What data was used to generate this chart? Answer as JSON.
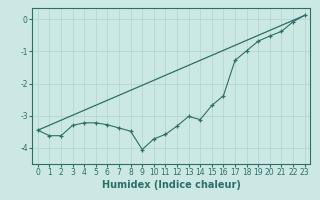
{
  "xlabel": "Humidex (Indice chaleur)",
  "ylabel": "",
  "bg_color": "#cce8e4",
  "line_color": "#2d6e68",
  "xlim": [
    -0.5,
    23.5
  ],
  "ylim": [
    -4.5,
    0.35
  ],
  "x_ticks": [
    0,
    1,
    2,
    3,
    4,
    5,
    6,
    7,
    8,
    9,
    10,
    11,
    12,
    13,
    14,
    15,
    16,
    17,
    18,
    19,
    20,
    21,
    22,
    23
  ],
  "y_ticks": [
    0,
    -1,
    -2,
    -3,
    -4
  ],
  "straight_line_x": [
    0,
    23
  ],
  "straight_line_y": [
    -3.45,
    0.12
  ],
  "zigzag_x": [
    0,
    1,
    2,
    3,
    4,
    5,
    6,
    7,
    8,
    9,
    10,
    11,
    12,
    13,
    14,
    15,
    16,
    17,
    18,
    19,
    20,
    21,
    22,
    23
  ],
  "zigzag_y": [
    -3.45,
    -3.62,
    -3.62,
    -3.3,
    -3.22,
    -3.22,
    -3.28,
    -3.38,
    -3.48,
    -4.05,
    -3.72,
    -3.58,
    -3.32,
    -3.02,
    -3.12,
    -2.68,
    -2.38,
    -1.28,
    -0.98,
    -0.68,
    -0.52,
    -0.38,
    -0.08,
    0.12
  ],
  "grid_color": "#b0d4ce",
  "tick_fontsize": 5.5,
  "xlabel_fontsize": 7.0
}
